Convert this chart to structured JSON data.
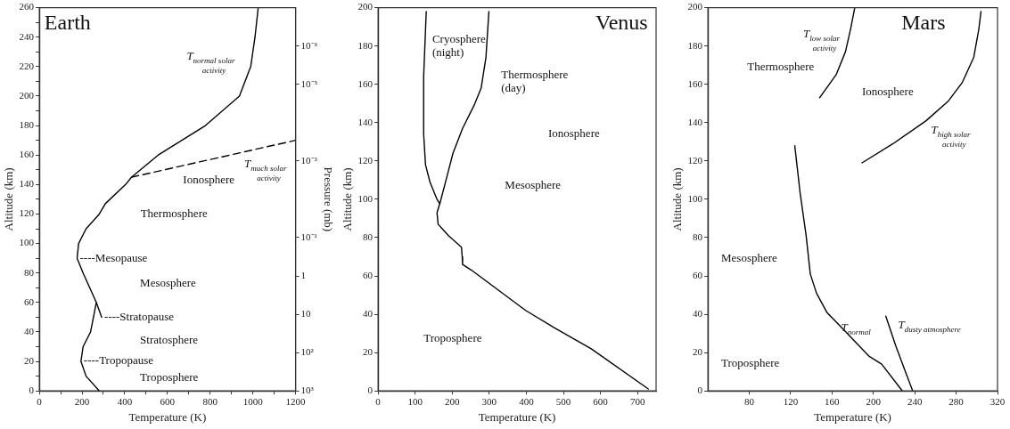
{
  "chart_data": [
    {
      "type": "line",
      "title": "Earth",
      "xlabel": "Temperature (K)",
      "ylabel": "Altitude (km)",
      "y2label": "Pressure (mb)",
      "log": "y2",
      "xlim": [
        0,
        1200
      ],
      "xticks": [
        0,
        {
          "value": 100,
          "label": null
        },
        200,
        {
          "value": 300,
          "label": null
        },
        400,
        {
          "value": 500,
          "label": null
        },
        600,
        {
          "value": 700,
          "label": null
        },
        800,
        {
          "value": 900,
          "label": null
        },
        1000,
        {
          "value": 1100,
          "label": null
        },
        1200
      ],
      "ylim": [
        0,
        260
      ],
      "yticks": [
        0,
        {
          "value": 10,
          "label": null
        },
        20,
        {
          "value": 30,
          "label": null
        },
        40,
        {
          "value": 50,
          "label": null
        },
        60,
        {
          "value": 70,
          "label": null
        },
        80,
        {
          "value": 90,
          "label": null
        },
        100,
        {
          "value": 110,
          "label": null
        },
        120,
        {
          "value": 130,
          "label": null
        },
        140,
        {
          "value": 150,
          "label": null
        },
        160,
        {
          "value": 170,
          "label": null
        },
        180,
        {
          "value": 190,
          "label": null
        },
        200,
        {
          "value": 210,
          "label": null
        },
        220,
        {
          "value": 230,
          "label": null
        },
        240,
        {
          "value": 250,
          "label": null
        },
        260
      ],
      "y2lim": [
        1000,
        1e-07
      ],
      "y2ticks": [
        {
          "value": 1e-06,
          "label": "10⁻⁶"
        },
        {
          "value": 1e-05,
          "label": "10⁻⁵"
        },
        {
          "value": 0.001,
          "label": "10⁻³"
        },
        {
          "value": 0.1,
          "label": "10⁻¹"
        },
        1,
        10,
        {
          "value": 100,
          "label": "10²"
        },
        {
          "value": 1000,
          "label": "10³"
        }
      ],
      "series": [
        {
          "color": "#000000",
          "x": [
            281,
            219,
            195,
            205,
            240,
            267,
            292,
            267,
            205,
            177,
            184,
            219,
            281,
            309,
            404,
            432,
            557,
            778,
            937,
            990,
            1010,
            1025
          ],
          "values": [
            0,
            10,
            20,
            30,
            40,
            60,
            50,
            60,
            80,
            90,
            100,
            110,
            120,
            127,
            140,
            145,
            160,
            180,
            200,
            220,
            240,
            260
          ]
        },
        {
          "color": "#000000",
          "line_style": "dashed",
          "x": [
            432,
            1200
          ],
          "values": [
            145,
            170
          ]
        }
      ],
      "annotations": [
        "T$_{normal solar activity}$",
        "T$_{much solar activity}$",
        "Ionosphere",
        "Thermosphere",
        {
          "text": "----Mesopause",
          "x": 177,
          "y": 90
        },
        "Mesosphere",
        {
          "text": "----Stratopause",
          "x": 292,
          "y": 50
        },
        "Stratosphere",
        {
          "text": "----Tropopause",
          "x": 195,
          "y": 20
        },
        "Troposphere"
      ]
    },
    {
      "type": "line",
      "title": "Venus",
      "xlabel": "Temperature (K)",
      "ylabel": "Altitude (km)",
      "xlim": [
        0,
        750
      ],
      "xticks": [
        0,
        100,
        200,
        300,
        400,
        500,
        600,
        700
      ],
      "ylim": [
        0,
        200
      ],
      "yticks": [
        0,
        20,
        40,
        60,
        80,
        100,
        120,
        140,
        160,
        180,
        200
      ],
      "series": [
        {
          "color": "#000000",
          "x": [
            130,
            123,
            123,
            128,
            140,
            159,
            165
          ],
          "values": [
            198,
            164,
            134,
            118,
            109,
            100,
            98
          ]
        },
        {
          "color": "#000000",
          "x": [
            299,
            291,
            278,
            259,
            228,
            202,
            186,
            167,
            159,
            162,
            190,
            225,
            227,
            228,
            252,
            398,
            475,
            575,
            729
          ],
          "values": [
            198,
            174,
            158,
            149,
            137,
            124,
            112,
            98,
            93,
            87,
            81,
            75,
            70,
            66,
            63,
            42,
            33,
            22,
            1
          ]
        }
      ],
      "annotations": [
        "Cryosphere\n(night)",
        "Thermosphere\n(day)",
        "Ionosphere",
        "Mesosphere",
        "Troposphere"
      ]
    },
    {
      "type": "line",
      "title": "Mars",
      "xlabel": "Temperature (K)",
      "ylabel": "Altitude (km)",
      "xlim": [
        40,
        320
      ],
      "xticks": [
        80,
        120,
        160,
        200,
        240,
        280,
        320
      ],
      "ylim": [
        0,
        200
      ],
      "yticks": [
        0,
        20,
        40,
        60,
        80,
        100,
        120,
        140,
        160,
        180,
        200
      ],
      "series": [
        {
          "color": "#000000",
          "x": [
            148,
            164,
            173,
            178,
            182
          ],
          "values": [
            153,
            165,
            177,
            189,
            200
          ]
        },
        {
          "color": "#000000",
          "x": [
            189,
            219,
            251,
            272,
            286,
            297,
            302,
            304
          ],
          "values": [
            119,
            129,
            141,
            151,
            161,
            174,
            189,
            198
          ]
        },
        {
          "color": "#000000",
          "x": [
            124,
            129,
            135,
            139,
            145,
            155,
            173,
            196,
            208,
            228
          ],
          "values": [
            128,
            104,
            81,
            61,
            51,
            41,
            31,
            18,
            14,
            0
          ]
        },
        {
          "color": "#000000",
          "x": [
            212,
            222,
            231,
            238
          ],
          "values": [
            39,
            23,
            10,
            0
          ]
        }
      ],
      "annotations": [
        "T$_{low solar activity}$",
        "Thermosphere",
        "Ionosphere",
        "T$_{high solar activity}$",
        "Mesosphere",
        "T$_{normal}$",
        "T$_{dusty atmosphere}$",
        "Troposphere"
      ]
    }
  ]
}
